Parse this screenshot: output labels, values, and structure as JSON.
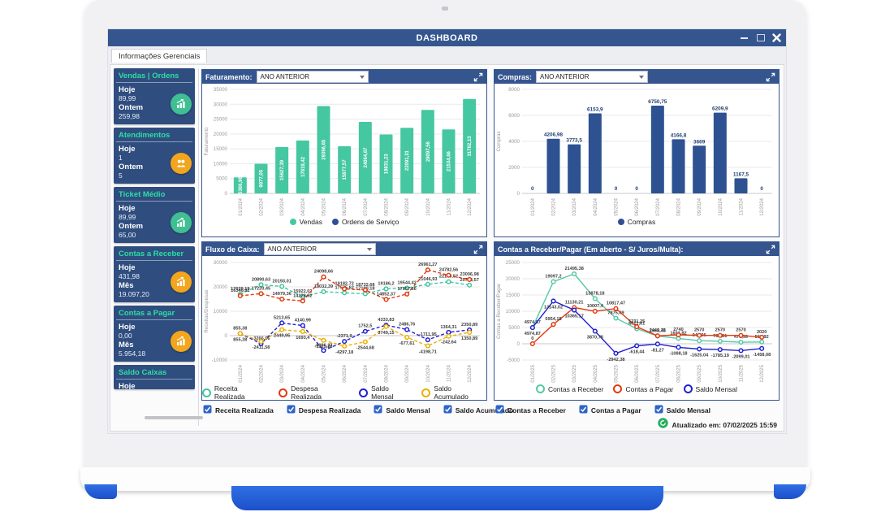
{
  "window": {
    "title": "DASHBOARD"
  },
  "tab_label": "Informações Gerenciais",
  "sidebar": {
    "cards": [
      {
        "title": "Vendas | Ordens",
        "icon": "bar-chart-icon",
        "icon_color": "#3fbf92",
        "rows": [
          {
            "label": "Hoje",
            "value": "89,99"
          },
          {
            "label": "Ontem",
            "value": "259,98"
          }
        ]
      },
      {
        "title": "Atendimentos",
        "icon": "people-icon",
        "icon_color": "#f2a51d",
        "rows": [
          {
            "label": "Hoje",
            "value": "1"
          },
          {
            "label": "Ontem",
            "value": "5"
          }
        ]
      },
      {
        "title": "Ticket Médio",
        "icon": "bar-chart-icon",
        "icon_color": "#3fbf92",
        "rows": [
          {
            "label": "Hoje",
            "value": "89,99"
          },
          {
            "label": "Ontem",
            "value": "65,00"
          }
        ]
      },
      {
        "title": "Contas a Receber",
        "icon": "bar-chart-icon",
        "icon_color": "#f2a51d",
        "rows": [
          {
            "label": "Hoje",
            "value": "431,98"
          },
          {
            "label": "Mês",
            "value": "19.097,20"
          }
        ]
      },
      {
        "title": "Contas a Pagar",
        "icon": "bar-chart-icon",
        "icon_color": "#f2a51d",
        "rows": [
          {
            "label": "Hoje",
            "value": "0,00"
          },
          {
            "label": "Mês",
            "value": "5.954,18"
          }
        ]
      },
      {
        "title": "Saldo Caixas",
        "icon": "",
        "icon_color": "",
        "rows": [
          {
            "label": "Hoje",
            "value": ""
          }
        ],
        "clipped": true
      }
    ]
  },
  "panels": [
    {
      "title": "Faturamento:",
      "dropdown": "ANO ANTERIOR"
    },
    {
      "title": "Compras:",
      "dropdown": "ANO ANTERIOR"
    },
    {
      "title": "Fluxo de Caixa:",
      "dropdown": "ANO ANTERIOR"
    },
    {
      "title": "Contas a Receber/Pagar (Em aberto - S/ Juros/Multa):"
    }
  ],
  "filters": {
    "fluxo": [
      "Receita Realizada",
      "Despesa Realizada",
      "Saldo Mensal",
      "Saldo Acumulado"
    ],
    "contas": [
      "Contas a Receber",
      "Contas a Pagar",
      "Saldo Mensal"
    ]
  },
  "footer": {
    "updated": "Atualizado em: 07/02/2025 15:59"
  },
  "colors": {
    "titlebar": "#35558f",
    "panel_header": "#35558f",
    "card_bg": "#2f4d7f",
    "accent_teal": "#2bdfa3",
    "icon_green": "#3fbf92",
    "icon_orange": "#f2a51d",
    "bar_green": "#45c7a1",
    "bar_navy": "#2e5191",
    "line_green": "#3fc6a0",
    "line_red": "#e23a10",
    "line_blue": "#2121d0",
    "line_yellow": "#efae00",
    "checkbox_blue": "#2e64c8",
    "update_green": "#27ae60",
    "base_blue": "#2560d8"
  },
  "chart_data": [
    {
      "id": "faturamento",
      "type": "bar",
      "title": "Faturamento",
      "categories": [
        "01/2024",
        "02/2024",
        "03/2024",
        "04/2024",
        "05/2024",
        "06/2024",
        "07/2024",
        "08/2024",
        "09/2024",
        "10/2024",
        "11/2024",
        "12/2024"
      ],
      "series": [
        {
          "name": "Vendas",
          "color": "#45c7a1",
          "values": [
            5386.96,
            9977.05,
            15627.39,
            17819.42,
            29396.65,
            15877.57,
            24064.87,
            19831.23,
            22091.31,
            28097.56,
            21534.66,
            31782.13
          ]
        },
        {
          "name": "Ordens de Serviço",
          "color": "#2e5191",
          "values": [
            0,
            0,
            0,
            0,
            0,
            0,
            0,
            0,
            0,
            0,
            0,
            0
          ]
        }
      ],
      "ylabel": "Faturamento",
      "ylim": [
        0,
        35000
      ],
      "ystep": 5000,
      "grid": true,
      "legend_position": "bottom",
      "bar_labels": "inside-vertical"
    },
    {
      "id": "compras",
      "type": "bar",
      "title": "Compras",
      "categories": [
        "01/2024",
        "02/2024",
        "03/2024",
        "04/2024",
        "05/2024",
        "06/2024",
        "07/2024",
        "08/2024",
        "09/2024",
        "10/2024",
        "11/2024",
        "12/2024"
      ],
      "series": [
        {
          "name": "Compras",
          "color": "#2e5191",
          "values": [
            0,
            4206.98,
            3773.5,
            6153.9,
            0,
            0,
            6750.75,
            4166.8,
            3669,
            6209.9,
            1167.5,
            0
          ]
        }
      ],
      "ylabel": "Compras",
      "ylim": [
        0,
        8000
      ],
      "ystep": 2000,
      "grid": true,
      "legend_position": "bottom",
      "bar_labels": "above"
    },
    {
      "id": "fluxo-de-caixa",
      "type": "line",
      "title": "Fluxo de Caixa",
      "categories": [
        "01/2024",
        "02/2024",
        "03/2024",
        "04/2024",
        "05/2024",
        "06/2024",
        "07/2024",
        "08/2024",
        "09/2024",
        "10/2024",
        "11/2024",
        "12/2024"
      ],
      "series": [
        {
          "name": "Receita Realizada",
          "color": "#3fc6a0",
          "dash": true,
          "values": [
            17029.19,
            20890.63,
            20193.01,
            15922.02,
            18032.39,
            17575.62,
            17180.18,
            19186.2,
            19544.42,
            21046.93,
            22103.52,
            20743.57
          ]
        },
        {
          "name": "Despesa Realizada",
          "color": "#e23a10",
          "dash": true,
          "values": [
            16346.91,
            17220.45,
            14979.36,
            14228.62,
            24098.66,
            19182.72,
            18732.68,
            14852.37,
            17057.66,
            26961.27,
            24782.56,
            23006.98
          ]
        },
        {
          "name": "Saldo Mensal",
          "color": "#2121d0",
          "dash": true,
          "values": [
            855.38,
            -3266.96,
            5213.65,
            4140.99,
            -6086.27,
            -2371.9,
            1752.5,
            4333.83,
            2486.76,
            -1711.95,
            1364.31,
            2350.89
          ]
        },
        {
          "name": "Saldo Acumulado",
          "color": "#efae00",
          "dash": true,
          "values": [
            855.38,
            -2411.58,
            2449.95,
            1693.4,
            -1925.28,
            -4297.18,
            -2544.68,
            3749.15,
            -677.61,
            -4198.71,
            -242.64,
            1350.89
          ]
        }
      ],
      "ylabel": "Receitas/Despesas",
      "ylim": [
        -10000,
        30000
      ],
      "ystep": 10000,
      "grid": true,
      "legend_position": "bottom",
      "point_labels": true,
      "label_dy": [
        -5,
        -5,
        -5,
        9
      ]
    },
    {
      "id": "contas-receber-pagar",
      "type": "line",
      "title": "Contas a Receber/Pagar (Em aberto - S/ Juros/Multa)",
      "categories": [
        "01/2025",
        "02/2025",
        "03/2025",
        "04/2025",
        "05/2025",
        "06/2025",
        "07/2025",
        "08/2025",
        "09/2025",
        "10/2025",
        "11/2025",
        "12/2025"
      ],
      "series": [
        {
          "name": "Contas a Receber",
          "color": "#57c9a6",
          "dash": false,
          "values": [
            4974.87,
            19097.2,
            21495.38,
            13878.18,
            7875.09,
            4612.81,
            2368.46,
            1651.82,
            944.96,
            784.81,
            470.99,
            561.92
          ]
        },
        {
          "name": "Contas a Pagar",
          "color": "#e23a10",
          "dash": false,
          "values": [
            0,
            5954.18,
            11130.21,
            10007.4,
            10817.47,
            5231.25,
            2449.73,
            2740,
            2570,
            2570,
            2570,
            2020
          ]
        },
        {
          "name": "Saldo Mensal",
          "color": "#2121d0",
          "dash": false,
          "values": [
            4974.87,
            13143.02,
            10365.17,
            3870.78,
            -2942.38,
            -618.44,
            -81.27,
            -1088.18,
            -1625.04,
            -1785.19,
            -2099.01,
            -1458.08
          ]
        }
      ],
      "ylabel": "Contas a Receber/Pagar",
      "ylim": [
        -5000,
        25000
      ],
      "ystep": 5000,
      "grid": true,
      "legend_position": "bottom",
      "point_labels": true,
      "label_dy": [
        -5,
        -5,
        9
      ]
    }
  ]
}
